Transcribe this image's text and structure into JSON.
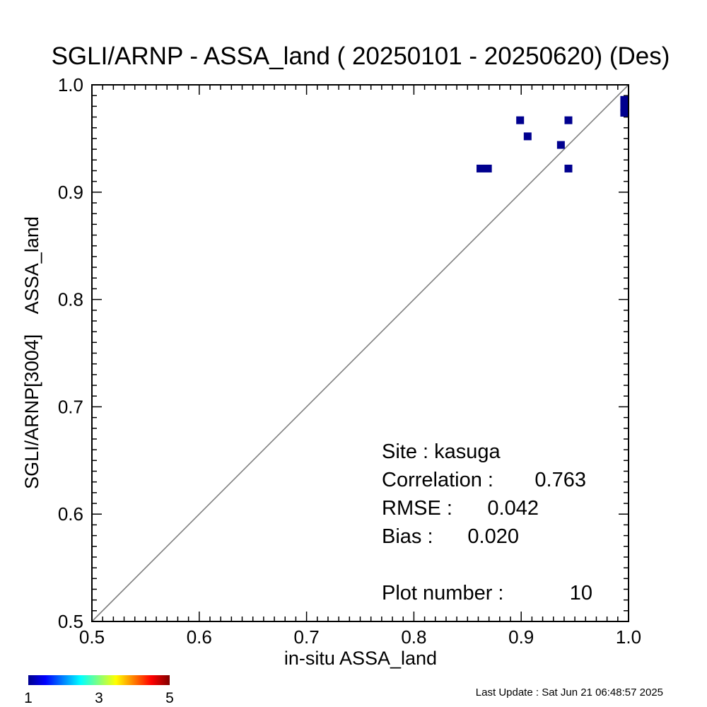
{
  "chart_data": {
    "type": "scatter",
    "title": "SGLI/ARNP - ASSA_land ( 20250101 - 20250620) (Des)",
    "xlabel": "in-situ ASSA_land",
    "ylabel": "SGLI/ARNP[3004]    ASSA_land",
    "xlim": [
      0.5,
      1.0
    ],
    "ylim": [
      0.5,
      1.0
    ],
    "xticks": [
      "0.5",
      "0.6",
      "0.7",
      "0.8",
      "0.9",
      "1.0"
    ],
    "yticks": [
      "0.5",
      "0.6",
      "0.7",
      "0.8",
      "0.9",
      "1.0"
    ],
    "grid": false,
    "reference_line": "1:1",
    "points": [
      {
        "x": 0.862,
        "y": 0.922,
        "count": 1
      },
      {
        "x": 0.869,
        "y": 0.922,
        "count": 1
      },
      {
        "x": 0.899,
        "y": 0.967,
        "count": 1
      },
      {
        "x": 0.906,
        "y": 0.952,
        "count": 1
      },
      {
        "x": 0.937,
        "y": 0.944,
        "count": 1
      },
      {
        "x": 0.944,
        "y": 0.967,
        "count": 1
      },
      {
        "x": 0.944,
        "y": 0.922,
        "count": 1
      },
      {
        "x": 0.996,
        "y": 0.986,
        "count": 1
      },
      {
        "x": 0.996,
        "y": 0.979,
        "count": 1
      },
      {
        "x": 0.996,
        "y": 0.974,
        "count": 1
      }
    ],
    "stats": {
      "site": "Site : kasuga",
      "correlation_label": "Correlation :",
      "correlation_value": "0.763",
      "rmse_label": "RMSE :",
      "rmse_value": "0.042",
      "bias_label": "Bias :",
      "bias_value": "0.020",
      "plot_number_label": "Plot number :",
      "plot_number_value": "10"
    },
    "colorbar": {
      "colors": [
        "#00008f",
        "#0000ff",
        "#00ffff",
        "#ffff00",
        "#ff0000",
        "#800000"
      ],
      "min_label": "1",
      "mid_label": "3",
      "max_label": "5"
    },
    "point_color": "#00008f"
  },
  "footer": {
    "last_update": "Last Update : Sat Jun 21 06:48:57 2025"
  }
}
